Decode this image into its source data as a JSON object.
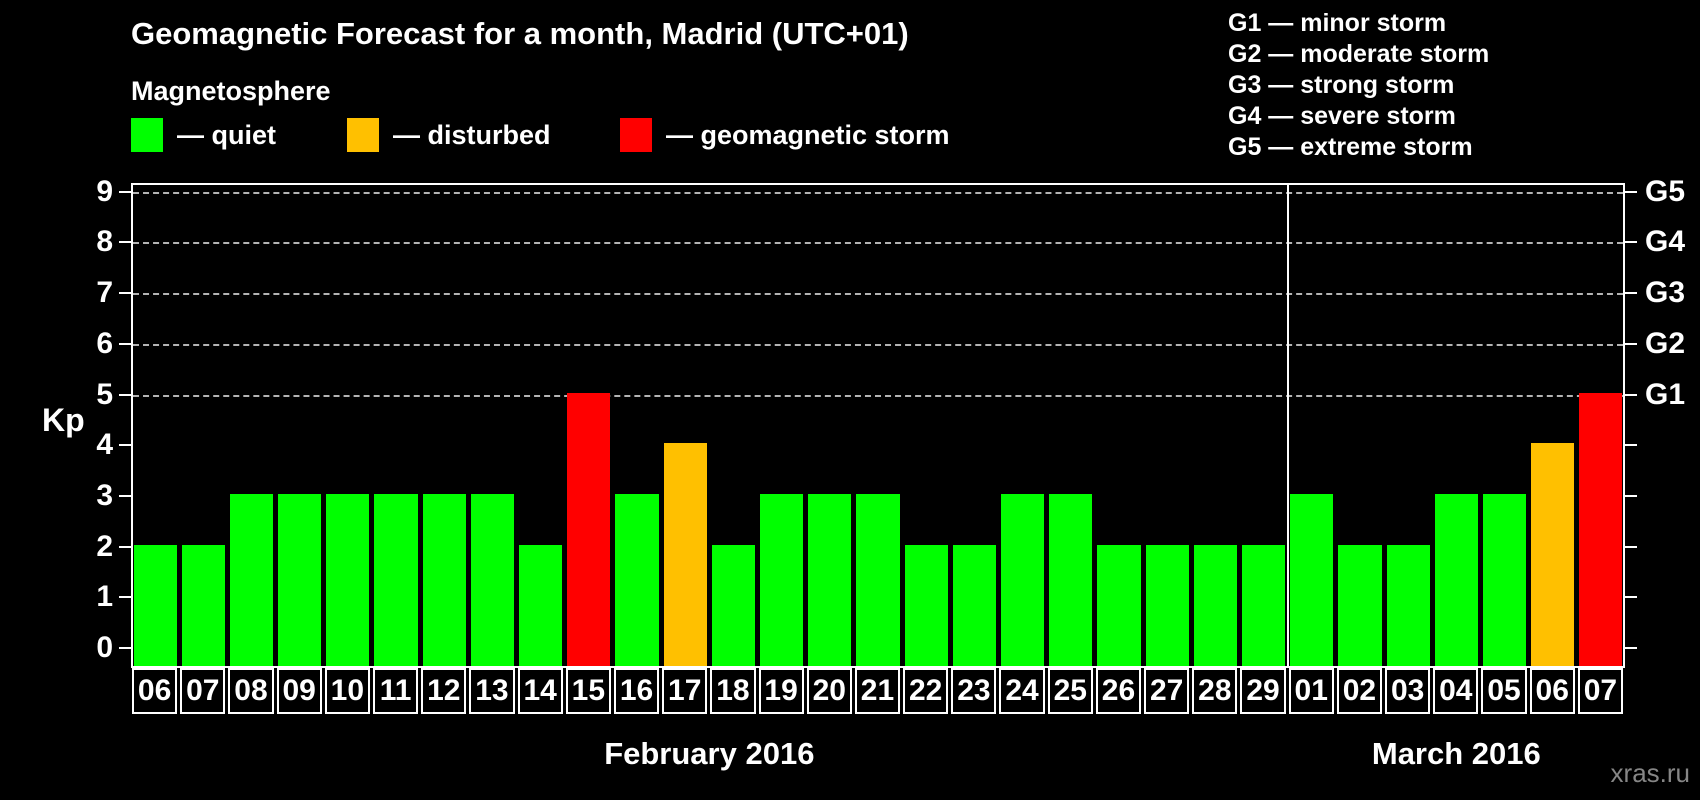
{
  "title": "Geomagnetic Forecast for a month, Madrid (UTC+01)",
  "subtitle": "Magnetosphere",
  "watermark": "xras.ru",
  "colors": {
    "background": "#000000",
    "quiet": "#00ff00",
    "disturbed": "#ffc000",
    "storm": "#ff0000",
    "axis": "#ffffff",
    "grid": "#b3b3b3",
    "watermark": "#868686"
  },
  "legend": {
    "items": [
      {
        "key": "quiet",
        "label": "— quiet",
        "color": "#00ff00"
      },
      {
        "key": "disturbed",
        "label": "— disturbed",
        "color": "#ffc000"
      },
      {
        "key": "storm",
        "label": "— geomagnetic storm",
        "color": "#ff0000"
      }
    ]
  },
  "g_scale_legend": [
    "G1 — minor storm",
    "G2 — moderate storm",
    "G3 — strong storm",
    "G4 — severe storm",
    "G5 — extreme storm"
  ],
  "chart_data": {
    "type": "bar",
    "title": "Geomagnetic Forecast for a month, Madrid (UTC+01)",
    "ylabel": "Kp",
    "ylim": [
      -0.4,
      9.2
    ],
    "y_ticks": [
      0,
      1,
      2,
      3,
      4,
      5,
      6,
      7,
      8,
      9
    ],
    "gridlines_at_kp": [
      5,
      6,
      7,
      8,
      9
    ],
    "grid_style": "dashed horizontal",
    "legend_position": "top-left",
    "right_axis": [
      {
        "label": "G1",
        "kp": 5
      },
      {
        "label": "G2",
        "kp": 6
      },
      {
        "label": "G3",
        "kp": 7
      },
      {
        "label": "G4",
        "kp": 8
      },
      {
        "label": "G5",
        "kp": 9
      }
    ],
    "months": [
      {
        "label": "February 2016",
        "days": [
          {
            "day": "06",
            "kp": 2,
            "state": "quiet"
          },
          {
            "day": "07",
            "kp": 2,
            "state": "quiet"
          },
          {
            "day": "08",
            "kp": 3,
            "state": "quiet"
          },
          {
            "day": "09",
            "kp": 3,
            "state": "quiet"
          },
          {
            "day": "10",
            "kp": 3,
            "state": "quiet"
          },
          {
            "day": "11",
            "kp": 3,
            "state": "quiet"
          },
          {
            "day": "12",
            "kp": 3,
            "state": "quiet"
          },
          {
            "day": "13",
            "kp": 3,
            "state": "quiet"
          },
          {
            "day": "14",
            "kp": 2,
            "state": "quiet"
          },
          {
            "day": "15",
            "kp": 5,
            "state": "storm"
          },
          {
            "day": "16",
            "kp": 3,
            "state": "quiet"
          },
          {
            "day": "17",
            "kp": 4,
            "state": "disturbed"
          },
          {
            "day": "18",
            "kp": 2,
            "state": "quiet"
          },
          {
            "day": "19",
            "kp": 3,
            "state": "quiet"
          },
          {
            "day": "20",
            "kp": 3,
            "state": "quiet"
          },
          {
            "day": "21",
            "kp": 3,
            "state": "quiet"
          },
          {
            "day": "22",
            "kp": 2,
            "state": "quiet"
          },
          {
            "day": "23",
            "kp": 2,
            "state": "quiet"
          },
          {
            "day": "24",
            "kp": 3,
            "state": "quiet"
          },
          {
            "day": "25",
            "kp": 3,
            "state": "quiet"
          },
          {
            "day": "26",
            "kp": 2,
            "state": "quiet"
          },
          {
            "day": "27",
            "kp": 2,
            "state": "quiet"
          },
          {
            "day": "28",
            "kp": 2,
            "state": "quiet"
          },
          {
            "day": "29",
            "kp": 2,
            "state": "quiet"
          }
        ]
      },
      {
        "label": "March 2016",
        "days": [
          {
            "day": "01",
            "kp": 3,
            "state": "quiet"
          },
          {
            "day": "02",
            "kp": 2,
            "state": "quiet"
          },
          {
            "day": "03",
            "kp": 2,
            "state": "quiet"
          },
          {
            "day": "04",
            "kp": 3,
            "state": "quiet"
          },
          {
            "day": "05",
            "kp": 3,
            "state": "quiet"
          },
          {
            "day": "06",
            "kp": 4,
            "state": "disturbed"
          },
          {
            "day": "07",
            "kp": 5,
            "state": "storm"
          }
        ]
      }
    ]
  }
}
